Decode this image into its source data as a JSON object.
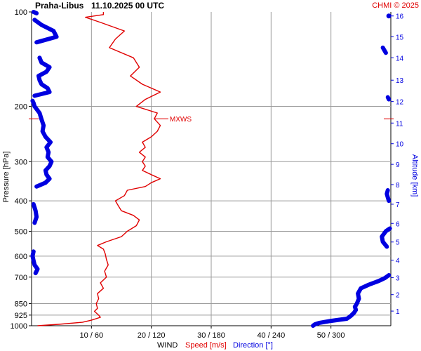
{
  "header": {
    "station": "Praha-Libus",
    "datetime": "11.10.2025 00 UTC",
    "credit": "CHMI © 2025"
  },
  "axes": {
    "left_label": "Pressure [hPa]",
    "right_label": "Altitude [km]",
    "bottom_title": "WIND",
    "bottom_speed": "Speed [m/s]",
    "bottom_direction": "Direction [°]"
  },
  "colors": {
    "speed": "#e00000",
    "direction": "#0000e0",
    "grid": "#9a9a9a",
    "text": "#000000"
  },
  "chart_data": {
    "type": "line",
    "y_scale": "log-pressure",
    "ylim_hpa": [
      1000,
      100
    ],
    "pressure_ticks": [
      100,
      200,
      300,
      400,
      500,
      600,
      700,
      850,
      925,
      1000
    ],
    "altitude_ticks_km": [
      1,
      2,
      3,
      4,
      5,
      6,
      7,
      8,
      9,
      10,
      11,
      12,
      13,
      14,
      15,
      16
    ],
    "altitude_km_to_hpa": [
      [
        1,
        898
      ],
      [
        2,
        796
      ],
      [
        3,
        703
      ],
      [
        4,
        618
      ],
      [
        5,
        541
      ],
      [
        6,
        472
      ],
      [
        7,
        410
      ],
      [
        8,
        355
      ],
      [
        9,
        306
      ],
      [
        10,
        263
      ],
      [
        11,
        226
      ],
      [
        12,
        193
      ],
      [
        13,
        165
      ],
      [
        14,
        140
      ],
      [
        15,
        120
      ],
      [
        16,
        103
      ]
    ],
    "speed_xlim": [
      0,
      60
    ],
    "direction_xlim": [
      0,
      360
    ],
    "x_tick_labels": [
      "10 / 60",
      "20 / 120",
      "30 / 180",
      "40 / 240",
      "50 / 300"
    ],
    "x_ticks_speed": [
      10,
      20,
      30,
      40,
      50
    ],
    "annotation": {
      "label": "MXWS",
      "pressure": 219,
      "speed": 20.5
    },
    "series": [
      {
        "name": "Speed [m/s]",
        "unit": "m/s",
        "points": [
          [
            1000,
            1.0
          ],
          [
            990,
            4.5
          ],
          [
            975,
            8.5
          ],
          [
            960,
            10.0
          ],
          [
            940,
            11.5
          ],
          [
            925,
            11.2
          ],
          [
            900,
            10.5
          ],
          [
            880,
            11.0
          ],
          [
            850,
            10.8
          ],
          [
            820,
            11.2
          ],
          [
            790,
            11.0
          ],
          [
            760,
            12.0
          ],
          [
            730,
            11.5
          ],
          [
            700,
            12.5
          ],
          [
            670,
            12.2
          ],
          [
            640,
            12.8
          ],
          [
            615,
            12.5
          ],
          [
            590,
            12.3
          ],
          [
            570,
            12.0
          ],
          [
            555,
            11.0
          ],
          [
            540,
            12.5
          ],
          [
            520,
            15.0
          ],
          [
            500,
            16.0
          ],
          [
            480,
            17.5
          ],
          [
            460,
            18.0
          ],
          [
            445,
            17.0
          ],
          [
            430,
            15.0
          ],
          [
            415,
            14.5
          ],
          [
            400,
            14.0
          ],
          [
            385,
            15.5
          ],
          [
            370,
            16.0
          ],
          [
            360,
            19.0
          ],
          [
            350,
            20.0
          ],
          [
            340,
            21.5
          ],
          [
            330,
            20.0
          ],
          [
            320,
            18.5
          ],
          [
            310,
            19.0
          ],
          [
            300,
            18.5
          ],
          [
            290,
            19.0
          ],
          [
            280,
            18.0
          ],
          [
            270,
            19.0
          ],
          [
            260,
            18.5
          ],
          [
            250,
            20.0
          ],
          [
            240,
            21.0
          ],
          [
            230,
            21.5
          ],
          [
            219,
            20.5
          ],
          [
            210,
            21.0
          ],
          [
            200,
            17.5
          ],
          [
            190,
            19.0
          ],
          [
            180,
            21.5
          ],
          [
            170,
            18.5
          ],
          [
            160,
            16.5
          ],
          [
            150,
            18.0
          ],
          [
            140,
            17.0
          ],
          [
            130,
            13.0
          ],
          [
            122,
            14.0
          ],
          [
            115,
            15.5
          ],
          [
            108,
            11.5
          ],
          [
            104,
            9.0
          ],
          [
            102,
            12.0
          ],
          [
            100,
            12.0
          ]
        ]
      },
      {
        "name": "Direction [°]",
        "unit": "deg",
        "points": [
          [
            1000,
            282
          ],
          [
            990,
            284
          ],
          [
            980,
            288
          ],
          [
            965,
            300
          ],
          [
            950,
            316
          ],
          [
            930,
            320
          ],
          [
            910,
            323
          ],
          [
            890,
            325
          ],
          [
            870,
            324
          ],
          [
            850,
            326
          ],
          [
            820,
            328
          ],
          [
            790,
            327
          ],
          [
            760,
            330
          ],
          [
            740,
            338
          ],
          [
            720,
            348
          ],
          [
            705,
            354
          ],
          [
            690,
            358
          ],
          [
            680,
            4
          ],
          [
            660,
            6
          ],
          [
            640,
            3
          ],
          [
            620,
            2
          ],
          [
            600,
            1
          ],
          [
            580,
            2
          ],
          [
            560,
            356
          ],
          [
            540,
            352
          ],
          [
            520,
            351
          ],
          [
            500,
            355
          ],
          [
            490,
            359
          ],
          [
            470,
            3
          ],
          [
            450,
            5
          ],
          [
            430,
            4
          ],
          [
            410,
            2
          ],
          [
            400,
            358
          ],
          [
            390,
            357
          ],
          [
            380,
            356
          ],
          [
            370,
            357
          ],
          [
            360,
            5
          ],
          [
            350,
            14
          ],
          [
            340,
            18
          ],
          [
            330,
            15
          ],
          [
            320,
            14
          ],
          [
            310,
            18
          ],
          [
            300,
            20
          ],
          [
            290,
            16
          ],
          [
            280,
            17
          ],
          [
            270,
            15
          ],
          [
            260,
            19
          ],
          [
            250,
            14
          ],
          [
            240,
            11
          ],
          [
            230,
            12
          ],
          [
            220,
            10
          ],
          [
            210,
            8
          ],
          [
            200,
            3
          ],
          [
            195,
            2
          ],
          [
            192,
            1
          ],
          [
            190,
            358
          ],
          [
            187,
            357
          ],
          [
            185,
            3
          ],
          [
            180,
            18
          ],
          [
            175,
            16
          ],
          [
            170,
            10
          ],
          [
            165,
            8
          ],
          [
            160,
            7
          ],
          [
            155,
            15
          ],
          [
            150,
            18
          ],
          [
            145,
            10
          ],
          [
            140,
            8
          ],
          [
            135,
            355
          ],
          [
            130,
            352
          ],
          [
            125,
            5
          ],
          [
            120,
            25
          ],
          [
            115,
            22
          ],
          [
            110,
            10
          ],
          [
            106,
            3
          ],
          [
            103,
            358
          ],
          [
            101,
            5
          ],
          [
            100,
            2
          ]
        ]
      }
    ]
  }
}
